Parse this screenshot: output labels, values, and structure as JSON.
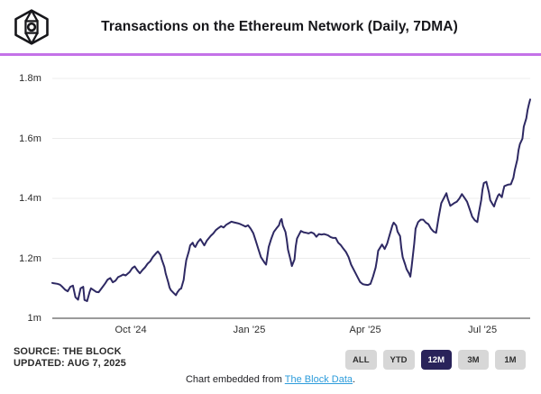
{
  "header": {
    "logo_icon": "the-block-cube-logo",
    "title": "Transactions on the Ethereum Network (Daily, 7DMA)",
    "accent_color": "#c472e8"
  },
  "chart_data": {
    "type": "line",
    "title": "Transactions on the Ethereum Network (Daily, 7DMA)",
    "unit": "daily transactions in millions (7-day moving average)",
    "ylim": [
      1.0,
      1.8
    ],
    "grid": "horizontal",
    "legend_position": "none",
    "line_color": "#2e2963",
    "grid_color": "#ececec",
    "axis_color": "#5f5f5f",
    "x_start": "2024-08-01",
    "x_end": "2025-08-07",
    "x_span_days": 371,
    "x_ticks": [
      {
        "label": "Oct '24",
        "day": 61
      },
      {
        "label": "Jan '25",
        "day": 153
      },
      {
        "label": "Apr '25",
        "day": 243
      },
      {
        "label": "Jul '25",
        "day": 334
      }
    ],
    "y_ticks": [
      {
        "label": "1m",
        "value": 1.0
      },
      {
        "label": "1.2m",
        "value": 1.2
      },
      {
        "label": "1.4m",
        "value": 1.4
      },
      {
        "label": "1.6m",
        "value": 1.6
      },
      {
        "label": "1.8m",
        "value": 1.8
      }
    ],
    "series": [
      {
        "name": "Ethereum daily transactions (7DMA, millions)",
        "points": [
          [
            0,
            1.118
          ],
          [
            1,
            1.117
          ],
          [
            4,
            1.115
          ],
          [
            6,
            1.112
          ],
          [
            8,
            1.104
          ],
          [
            10,
            1.095
          ],
          [
            12,
            1.09
          ],
          [
            14,
            1.105
          ],
          [
            16,
            1.109
          ],
          [
            18,
            1.07
          ],
          [
            20,
            1.062
          ],
          [
            22,
            1.1
          ],
          [
            24,
            1.105
          ],
          [
            25,
            1.061
          ],
          [
            27,
            1.057
          ],
          [
            29,
            1.088
          ],
          [
            30,
            1.1
          ],
          [
            32,
            1.094
          ],
          [
            34,
            1.088
          ],
          [
            36,
            1.087
          ],
          [
            39,
            1.104
          ],
          [
            41,
            1.116
          ],
          [
            43,
            1.129
          ],
          [
            45,
            1.134
          ],
          [
            47,
            1.12
          ],
          [
            49,
            1.125
          ],
          [
            51,
            1.137
          ],
          [
            53,
            1.141
          ],
          [
            55,
            1.146
          ],
          [
            57,
            1.143
          ],
          [
            60,
            1.154
          ],
          [
            62,
            1.167
          ],
          [
            64,
            1.173
          ],
          [
            66,
            1.16
          ],
          [
            68,
            1.15
          ],
          [
            70,
            1.161
          ],
          [
            72,
            1.17
          ],
          [
            74,
            1.182
          ],
          [
            76,
            1.19
          ],
          [
            78,
            1.204
          ],
          [
            81,
            1.219
          ],
          [
            82,
            1.223
          ],
          [
            84,
            1.211
          ],
          [
            85,
            1.196
          ],
          [
            87,
            1.171
          ],
          [
            88,
            1.15
          ],
          [
            90,
            1.12
          ],
          [
            91,
            1.103
          ],
          [
            92,
            1.094
          ],
          [
            94,
            1.085
          ],
          [
            96,
            1.077
          ],
          [
            97,
            1.086
          ],
          [
            99,
            1.097
          ],
          [
            100,
            1.099
          ],
          [
            102,
            1.128
          ],
          [
            103,
            1.163
          ],
          [
            104,
            1.194
          ],
          [
            106,
            1.223
          ],
          [
            107,
            1.243
          ],
          [
            109,
            1.252
          ],
          [
            110,
            1.242
          ],
          [
            111,
            1.238
          ],
          [
            113,
            1.254
          ],
          [
            115,
            1.264
          ],
          [
            116,
            1.257
          ],
          [
            118,
            1.243
          ],
          [
            120,
            1.259
          ],
          [
            123,
            1.275
          ],
          [
            125,
            1.283
          ],
          [
            127,
            1.294
          ],
          [
            129,
            1.301
          ],
          [
            131,
            1.307
          ],
          [
            133,
            1.303
          ],
          [
            135,
            1.312
          ],
          [
            137,
            1.317
          ],
          [
            139,
            1.322
          ],
          [
            141,
            1.32
          ],
          [
            144,
            1.317
          ],
          [
            146,
            1.314
          ],
          [
            148,
            1.31
          ],
          [
            150,
            1.306
          ],
          [
            152,
            1.31
          ],
          [
            154,
            1.299
          ],
          [
            156,
            1.284
          ],
          [
            158,
            1.258
          ],
          [
            160,
            1.23
          ],
          [
            162,
            1.204
          ],
          [
            165,
            1.184
          ],
          [
            166,
            1.179
          ],
          [
            168,
            1.238
          ],
          [
            170,
            1.266
          ],
          [
            172,
            1.288
          ],
          [
            174,
            1.3
          ],
          [
            176,
            1.31
          ],
          [
            177,
            1.325
          ],
          [
            178,
            1.331
          ],
          [
            179,
            1.309
          ],
          [
            181,
            1.288
          ],
          [
            182,
            1.263
          ],
          [
            183,
            1.229
          ],
          [
            185,
            1.194
          ],
          [
            186,
            1.174
          ],
          [
            188,
            1.196
          ],
          [
            189,
            1.24
          ],
          [
            190,
            1.266
          ],
          [
            192,
            1.283
          ],
          [
            193,
            1.291
          ],
          [
            195,
            1.287
          ],
          [
            197,
            1.285
          ],
          [
            199,
            1.283
          ],
          [
            201,
            1.287
          ],
          [
            203,
            1.283
          ],
          [
            205,
            1.272
          ],
          [
            207,
            1.281
          ],
          [
            209,
            1.279
          ],
          [
            211,
            1.281
          ],
          [
            214,
            1.277
          ],
          [
            216,
            1.271
          ],
          [
            218,
            1.268
          ],
          [
            220,
            1.268
          ],
          [
            222,
            1.252
          ],
          [
            224,
            1.244
          ],
          [
            226,
            1.232
          ],
          [
            228,
            1.221
          ],
          [
            230,
            1.204
          ],
          [
            232,
            1.179
          ],
          [
            235,
            1.154
          ],
          [
            237,
            1.137
          ],
          [
            239,
            1.121
          ],
          [
            241,
            1.114
          ],
          [
            243,
            1.112
          ],
          [
            245,
            1.111
          ],
          [
            247,
            1.115
          ],
          [
            249,
            1.139
          ],
          [
            251,
            1.169
          ],
          [
            252,
            1.194
          ],
          [
            253,
            1.225
          ],
          [
            256,
            1.246
          ],
          [
            257,
            1.239
          ],
          [
            258,
            1.231
          ],
          [
            260,
            1.249
          ],
          [
            261,
            1.265
          ],
          [
            263,
            1.294
          ],
          [
            264,
            1.309
          ],
          [
            265,
            1.319
          ],
          [
            267,
            1.309
          ],
          [
            268,
            1.289
          ],
          [
            270,
            1.274
          ],
          [
            271,
            1.234
          ],
          [
            272,
            1.204
          ],
          [
            274,
            1.179
          ],
          [
            275,
            1.164
          ],
          [
            277,
            1.149
          ],
          [
            278,
            1.139
          ],
          [
            279,
            1.174
          ],
          [
            281,
            1.249
          ],
          [
            282,
            1.299
          ],
          [
            284,
            1.321
          ],
          [
            286,
            1.329
          ],
          [
            288,
            1.329
          ],
          [
            290,
            1.319
          ],
          [
            292,
            1.314
          ],
          [
            294,
            1.299
          ],
          [
            296,
            1.289
          ],
          [
            298,
            1.285
          ],
          [
            300,
            1.339
          ],
          [
            302,
            1.384
          ],
          [
            305,
            1.409
          ],
          [
            306,
            1.417
          ],
          [
            307,
            1.399
          ],
          [
            309,
            1.375
          ],
          [
            312,
            1.384
          ],
          [
            314,
            1.389
          ],
          [
            316,
            1.399
          ],
          [
            318,
            1.414
          ],
          [
            320,
            1.402
          ],
          [
            322,
            1.389
          ],
          [
            324,
            1.364
          ],
          [
            326,
            1.339
          ],
          [
            328,
            1.327
          ],
          [
            330,
            1.321
          ],
          [
            331,
            1.349
          ],
          [
            333,
            1.394
          ],
          [
            334,
            1.429
          ],
          [
            335,
            1.451
          ],
          [
            337,
            1.455
          ],
          [
            339,
            1.419
          ],
          [
            340,
            1.394
          ],
          [
            342,
            1.379
          ],
          [
            343,
            1.373
          ],
          [
            344,
            1.387
          ],
          [
            346,
            1.409
          ],
          [
            347,
            1.414
          ],
          [
            349,
            1.404
          ],
          [
            350,
            1.424
          ],
          [
            351,
            1.441
          ],
          [
            354,
            1.446
          ],
          [
            356,
            1.447
          ],
          [
            358,
            1.469
          ],
          [
            359,
            1.494
          ],
          [
            361,
            1.529
          ],
          [
            362,
            1.561
          ],
          [
            363,
            1.581
          ],
          [
            365,
            1.599
          ],
          [
            366,
            1.639
          ],
          [
            368,
            1.667
          ],
          [
            369,
            1.694
          ],
          [
            370,
            1.714
          ],
          [
            371,
            1.73
          ]
        ]
      }
    ]
  },
  "footer": {
    "source_line1": "SOURCE: THE BLOCK",
    "source_line2": "UPDATED: AUG 7, 2025",
    "ranges": [
      "ALL",
      "YTD",
      "12M",
      "3M",
      "1M"
    ],
    "active_range": "12M",
    "embed_prefix": "Chart embedded from ",
    "embed_link": "The Block Data",
    "embed_suffix": ".",
    "link_color": "#2d9cdb"
  }
}
